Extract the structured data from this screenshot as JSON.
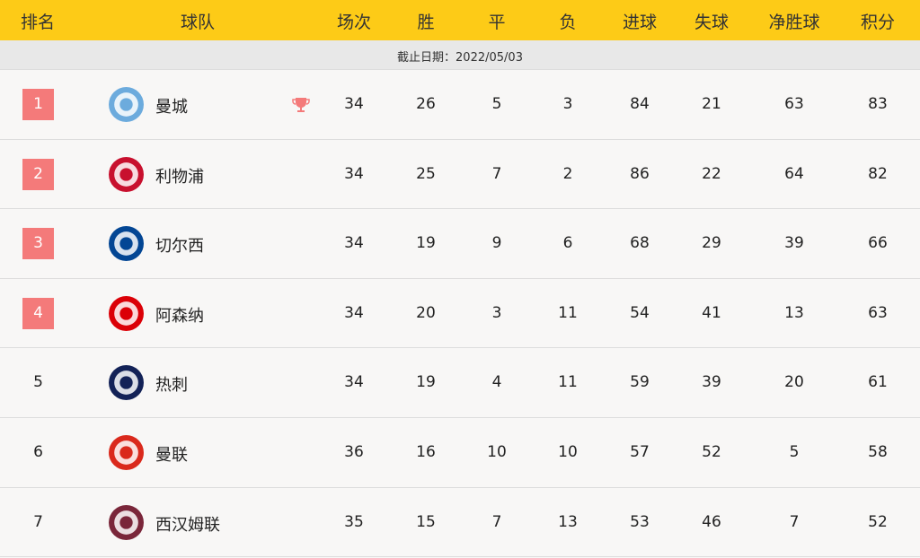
{
  "header": {
    "rank": "排名",
    "team": "球队",
    "played": "场次",
    "won": "胜",
    "drawn": "平",
    "lost": "负",
    "gf": "进球",
    "ga": "失球",
    "gd": "净胜球",
    "pts": "积分"
  },
  "subheader": {
    "date": "截止日期：2022/05/03"
  },
  "colors": {
    "header": "#fdcb17",
    "badge": "#f47a7a",
    "trophy": "#f47a7a"
  },
  "rows": [
    {
      "rank": "1",
      "team": "曼城",
      "played": "34",
      "won": "26",
      "drawn": "5",
      "lost": "3",
      "gf": "84",
      "ga": "21",
      "gd": "63",
      "pts": "83",
      "highlight": true,
      "trophy": true,
      "logo": "manchester-city-crest",
      "logo_color": "#6cabdd"
    },
    {
      "rank": "2",
      "team": "利物浦",
      "played": "34",
      "won": "25",
      "drawn": "7",
      "lost": "2",
      "gf": "86",
      "ga": "22",
      "gd": "64",
      "pts": "82",
      "highlight": true,
      "logo": "liverpool-crest",
      "logo_color": "#c8102e"
    },
    {
      "rank": "3",
      "team": "切尔西",
      "played": "34",
      "won": "19",
      "drawn": "9",
      "lost": "6",
      "gf": "68",
      "ga": "29",
      "gd": "39",
      "pts": "66",
      "highlight": true,
      "logo": "chelsea-crest",
      "logo_color": "#034694"
    },
    {
      "rank": "4",
      "team": "阿森纳",
      "played": "34",
      "won": "20",
      "drawn": "3",
      "lost": "11",
      "gf": "54",
      "ga": "41",
      "gd": "13",
      "pts": "63",
      "highlight": true,
      "logo": "arsenal-crest",
      "logo_color": "#db0007"
    },
    {
      "rank": "5",
      "team": "热刺",
      "played": "34",
      "won": "19",
      "drawn": "4",
      "lost": "11",
      "gf": "59",
      "ga": "39",
      "gd": "20",
      "pts": "61",
      "highlight": false,
      "logo": "tottenham-crest",
      "logo_color": "#132257"
    },
    {
      "rank": "6",
      "team": "曼联",
      "played": "36",
      "won": "16",
      "drawn": "10",
      "lost": "10",
      "gf": "57",
      "ga": "52",
      "gd": "5",
      "pts": "58",
      "highlight": false,
      "logo": "manchester-united-crest",
      "logo_color": "#da291c"
    },
    {
      "rank": "7",
      "team": "西汉姆联",
      "played": "35",
      "won": "15",
      "drawn": "7",
      "lost": "13",
      "gf": "53",
      "ga": "46",
      "gd": "7",
      "pts": "52",
      "highlight": false,
      "logo": "west-ham-crest",
      "logo_color": "#7a263a"
    }
  ]
}
